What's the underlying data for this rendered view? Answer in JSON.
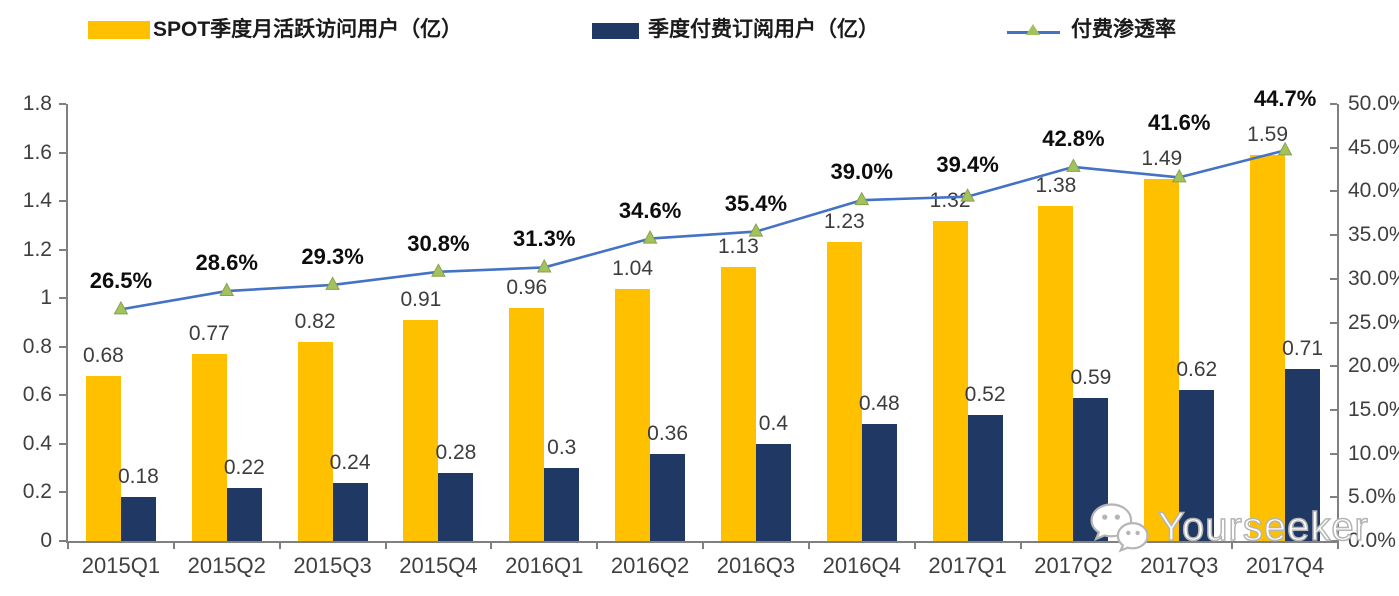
{
  "legend": {
    "items": [
      {
        "label": "SPOT季度月活跃访问用户（亿）",
        "swatch": "bar",
        "color": "#FFC000"
      },
      {
        "label": "季度付费订阅用户（亿）",
        "swatch": "bar",
        "color": "#1F3864"
      },
      {
        "label": "付费渗透率",
        "swatch": "line-with-triangle-marker",
        "color": "#4472C4",
        "marker_color": "#A4C25C"
      }
    ]
  },
  "chart_data": {
    "type": "bar",
    "subtype": "combo dual-axis: grouped bars + line",
    "categories": [
      "2015Q1",
      "2015Q2",
      "2015Q3",
      "2015Q4",
      "2016Q1",
      "2016Q2",
      "2016Q3",
      "2016Q4",
      "2017Q1",
      "2017Q2",
      "2017Q3",
      "2017Q4"
    ],
    "series": [
      {
        "name": "SPOT季度月活跃访问用户（亿）",
        "type": "bar",
        "axis": "left",
        "color": "#FFC000",
        "values": [
          0.68,
          0.77,
          0.82,
          0.91,
          0.96,
          1.04,
          1.13,
          1.23,
          1.32,
          1.38,
          1.49,
          1.59
        ],
        "labels": [
          "0.68",
          "0.77",
          "0.82",
          "0.91",
          "0.96",
          "1.04",
          "1.13",
          "1.23",
          "1.32",
          "1.38",
          "1.49",
          "1.59"
        ]
      },
      {
        "name": "季度付费订阅用户（亿）",
        "type": "bar",
        "axis": "left",
        "color": "#1F3864",
        "values": [
          0.18,
          0.22,
          0.24,
          0.28,
          0.3,
          0.36,
          0.4,
          0.48,
          0.52,
          0.59,
          0.62,
          0.71
        ],
        "labels": [
          "0.18",
          "0.22",
          "0.24",
          "0.28",
          "0.3",
          "0.36",
          "0.4",
          "0.48",
          "0.52",
          "0.59",
          "0.62",
          "0.71"
        ]
      },
      {
        "name": "付费渗透率",
        "type": "line",
        "axis": "right",
        "color": "#4472C4",
        "marker": "triangle-up",
        "marker_color": "#A4C25C",
        "values": [
          26.5,
          28.6,
          29.3,
          30.8,
          31.3,
          34.6,
          35.4,
          39.0,
          39.4,
          42.8,
          41.6,
          44.7
        ],
        "labels": [
          "26.5%",
          "28.6%",
          "29.3%",
          "30.8%",
          "31.3%",
          "34.6%",
          "35.4%",
          "39.0%",
          "39.4%",
          "42.8%",
          "41.6%",
          "44.7%"
        ]
      }
    ],
    "left_axis": {
      "min": 0,
      "max": 1.8,
      "step": 0.2,
      "tick_labels": [
        "0",
        "0.2",
        "0.4",
        "0.6",
        "0.8",
        "1",
        "1.2",
        "1.4",
        "1.6",
        "1.8"
      ]
    },
    "right_axis": {
      "min": 0,
      "max": 50,
      "step": 5,
      "tick_labels": [
        "0.0%",
        "5.0%",
        "10.0%",
        "15.0%",
        "20.0%",
        "25.0%",
        "30.0%",
        "35.0%",
        "40.0%",
        "45.0%",
        "50.0%"
      ]
    },
    "grid": false,
    "legend_position": "top",
    "axis_color": "#808080"
  },
  "watermark": {
    "text": "Yourseeker",
    "icon": "wechat-icon"
  }
}
